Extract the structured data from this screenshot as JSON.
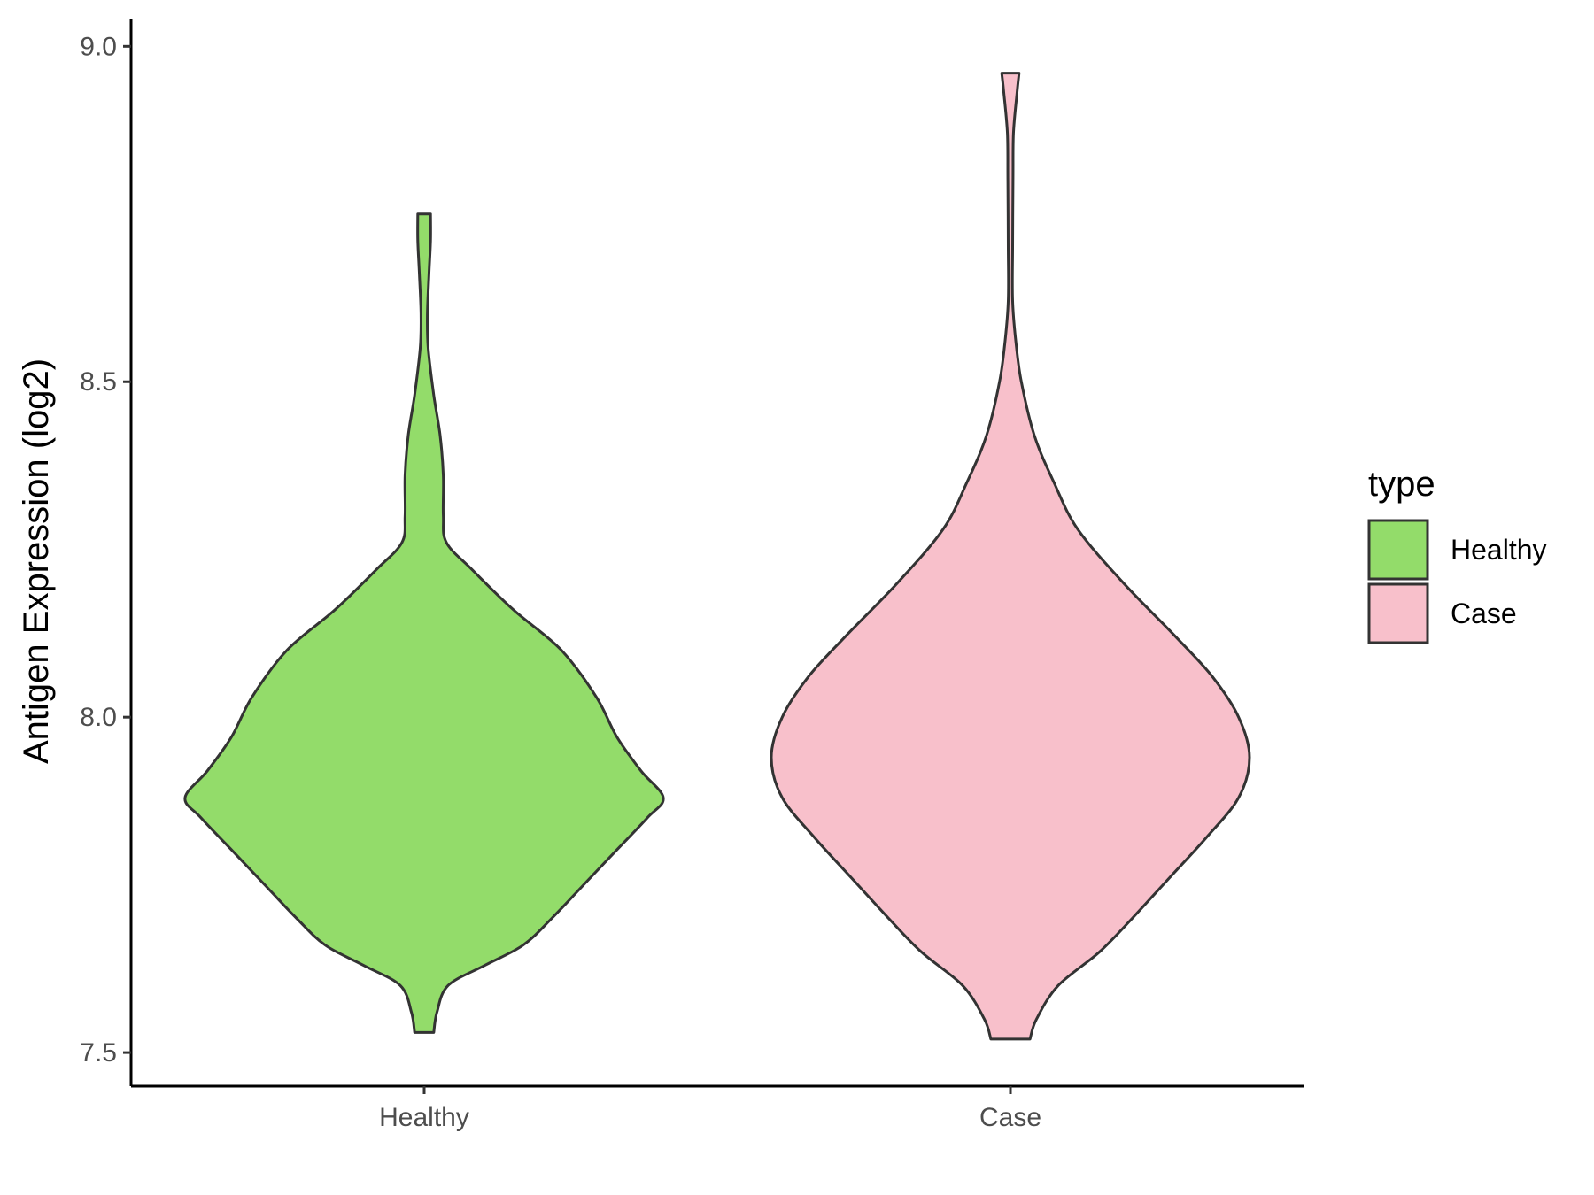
{
  "chart_data": {
    "type": "violin",
    "title": "",
    "xlabel": "",
    "ylabel": "Antigen Expression (log2)",
    "ylim": [
      7.45,
      9.04
    ],
    "y_ticks": [
      "7.5",
      "8.0",
      "8.5",
      "9.0"
    ],
    "categories": [
      "Healthy",
      "Case"
    ],
    "grid": false,
    "legend": {
      "title": "type",
      "placement": "right",
      "entries": [
        {
          "label": "Healthy",
          "color": "#93dc6a"
        },
        {
          "label": "Case",
          "color": "#f8c0cb"
        }
      ]
    },
    "series": [
      {
        "category": "Healthy",
        "color": "#93dc6a",
        "min": 7.53,
        "max": 8.75,
        "density": [
          [
            7.53,
            0.06
          ],
          [
            7.56,
            0.08
          ],
          [
            7.6,
            0.15
          ],
          [
            7.63,
            0.38
          ],
          [
            7.66,
            0.62
          ],
          [
            7.7,
            0.8
          ],
          [
            7.75,
            1.0
          ],
          [
            7.8,
            1.2
          ],
          [
            7.85,
            1.4
          ],
          [
            7.88,
            1.5
          ],
          [
            7.92,
            1.36
          ],
          [
            7.97,
            1.21
          ],
          [
            8.03,
            1.08
          ],
          [
            8.1,
            0.86
          ],
          [
            8.16,
            0.56
          ],
          [
            8.22,
            0.3
          ],
          [
            8.26,
            0.14
          ],
          [
            8.3,
            0.12
          ],
          [
            8.36,
            0.12
          ],
          [
            8.42,
            0.1
          ],
          [
            8.48,
            0.06
          ],
          [
            8.55,
            0.025
          ],
          [
            8.6,
            0.02
          ],
          [
            8.66,
            0.03
          ],
          [
            8.71,
            0.04
          ],
          [
            8.75,
            0.04
          ]
        ]
      },
      {
        "category": "Case",
        "color": "#f8c0cb",
        "min": 7.52,
        "max": 8.96,
        "density": [
          [
            7.52,
            0.09
          ],
          [
            7.55,
            0.12
          ],
          [
            7.6,
            0.22
          ],
          [
            7.65,
            0.41
          ],
          [
            7.7,
            0.56
          ],
          [
            7.76,
            0.73
          ],
          [
            7.82,
            0.9
          ],
          [
            7.88,
            1.05
          ],
          [
            7.94,
            1.1
          ],
          [
            8.0,
            1.05
          ],
          [
            8.06,
            0.93
          ],
          [
            8.12,
            0.76
          ],
          [
            8.2,
            0.52
          ],
          [
            8.28,
            0.31
          ],
          [
            8.35,
            0.2
          ],
          [
            8.42,
            0.11
          ],
          [
            8.5,
            0.05
          ],
          [
            8.56,
            0.025
          ],
          [
            8.62,
            0.01
          ],
          [
            8.7,
            0.01
          ],
          [
            8.8,
            0.012
          ],
          [
            8.87,
            0.014
          ],
          [
            8.93,
            0.03
          ],
          [
            8.96,
            0.04
          ]
        ]
      }
    ]
  }
}
